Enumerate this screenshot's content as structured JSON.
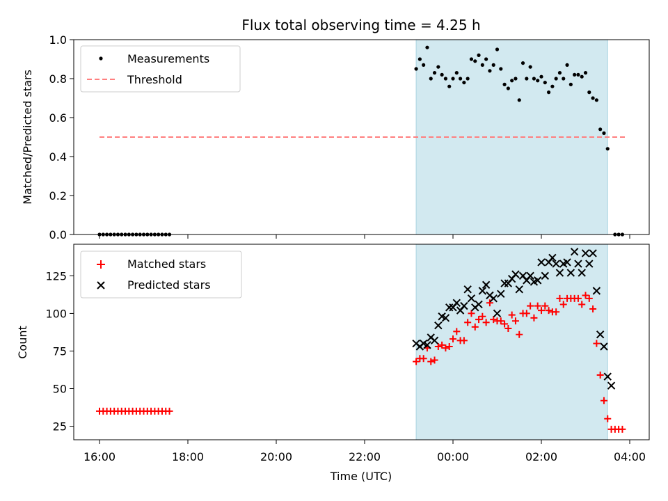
{
  "chart_data": [
    {
      "type": "scatter",
      "title": "Flux total observing time = 4.25 h",
      "ylabel": "Matched/Predicted stars",
      "xlabel": "",
      "ylim": [
        0,
        1.0
      ],
      "yticks": [
        "0.0",
        "0.2",
        "0.4",
        "0.6",
        "0.8",
        "1.0"
      ],
      "highlight_span": {
        "x_start": "23:10",
        "x_end": "03:30",
        "color": "#d2e9f0"
      },
      "legend": {
        "position": "upper-left",
        "entries": [
          "Measurements",
          "Threshold"
        ]
      },
      "series": [
        {
          "name": "Measurements",
          "marker": "dot",
          "color": "#000000",
          "points": [
            [
              "16:00",
              0
            ],
            [
              "16:05",
              0
            ],
            [
              "16:10",
              0
            ],
            [
              "16:15",
              0
            ],
            [
              "16:20",
              0
            ],
            [
              "16:25",
              0
            ],
            [
              "16:30",
              0
            ],
            [
              "16:35",
              0
            ],
            [
              "16:40",
              0
            ],
            [
              "16:45",
              0
            ],
            [
              "16:50",
              0
            ],
            [
              "16:55",
              0
            ],
            [
              "17:00",
              0
            ],
            [
              "17:05",
              0
            ],
            [
              "17:10",
              0
            ],
            [
              "17:15",
              0
            ],
            [
              "17:20",
              0
            ],
            [
              "17:25",
              0
            ],
            [
              "17:30",
              0
            ],
            [
              "17:35",
              0
            ],
            [
              "23:10",
              0.85
            ],
            [
              "23:15",
              0.9
            ],
            [
              "23:20",
              0.87
            ],
            [
              "23:25",
              0.96
            ],
            [
              "23:30",
              0.8
            ],
            [
              "23:35",
              0.83
            ],
            [
              "23:40",
              0.86
            ],
            [
              "23:45",
              0.82
            ],
            [
              "23:50",
              0.8
            ],
            [
              "23:55",
              0.76
            ],
            [
              "00:00",
              0.8
            ],
            [
              "00:05",
              0.83
            ],
            [
              "00:10",
              0.8
            ],
            [
              "00:15",
              0.78
            ],
            [
              "00:20",
              0.8
            ],
            [
              "00:25",
              0.9
            ],
            [
              "00:30",
              0.89
            ],
            [
              "00:35",
              0.92
            ],
            [
              "00:40",
              0.87
            ],
            [
              "00:45",
              0.9
            ],
            [
              "00:50",
              0.84
            ],
            [
              "00:55",
              0.87
            ],
            [
              "01:00",
              0.95
            ],
            [
              "01:05",
              0.85
            ],
            [
              "01:10",
              0.77
            ],
            [
              "01:15",
              0.75
            ],
            [
              "01:20",
              0.79
            ],
            [
              "01:25",
              0.8
            ],
            [
              "01:30",
              0.69
            ],
            [
              "01:35",
              0.88
            ],
            [
              "01:40",
              0.8
            ],
            [
              "01:45",
              0.86
            ],
            [
              "01:50",
              0.8
            ],
            [
              "01:55",
              0.79
            ],
            [
              "02:00",
              0.81
            ],
            [
              "02:05",
              0.78
            ],
            [
              "02:10",
              0.73
            ],
            [
              "02:15",
              0.76
            ],
            [
              "02:20",
              0.8
            ],
            [
              "02:25",
              0.83
            ],
            [
              "02:30",
              0.8
            ],
            [
              "02:35",
              0.87
            ],
            [
              "02:40",
              0.77
            ],
            [
              "02:45",
              0.82
            ],
            [
              "02:50",
              0.82
            ],
            [
              "02:55",
              0.81
            ],
            [
              "03:00",
              0.83
            ],
            [
              "03:05",
              0.73
            ],
            [
              "03:10",
              0.7
            ],
            [
              "03:15",
              0.69
            ],
            [
              "03:20",
              0.54
            ],
            [
              "03:25",
              0.52
            ],
            [
              "03:30",
              0.44
            ],
            [
              "03:40",
              0
            ],
            [
              "03:45",
              0
            ],
            [
              "03:50",
              0
            ]
          ]
        },
        {
          "name": "Threshold",
          "marker": "dashed-line",
          "color": "#ff7f7f",
          "points": [
            [
              "16:00",
              0.5
            ],
            [
              "03:55",
              0.5
            ]
          ]
        }
      ]
    },
    {
      "type": "scatter",
      "title": "",
      "ylabel": "Count",
      "xlabel": "Time (UTC)",
      "ylim": [
        16,
        146
      ],
      "yticks": [
        "25",
        "50",
        "75",
        "100",
        "125"
      ],
      "xticks": [
        "16:00",
        "18:00",
        "20:00",
        "22:00",
        "00:00",
        "02:00",
        "04:00"
      ],
      "highlight_span": {
        "x_start": "23:10",
        "x_end": "03:30",
        "color": "#d2e9f0"
      },
      "legend": {
        "position": "upper-left",
        "entries": [
          "Matched stars",
          "Predicted stars"
        ]
      },
      "series": [
        {
          "name": "Matched stars",
          "marker": "plus",
          "color": "#ff0000",
          "points": [
            [
              "16:00",
              35
            ],
            [
              "16:05",
              35
            ],
            [
              "16:10",
              35
            ],
            [
              "16:15",
              35
            ],
            [
              "16:20",
              35
            ],
            [
              "16:25",
              35
            ],
            [
              "16:30",
              35
            ],
            [
              "16:35",
              35
            ],
            [
              "16:40",
              35
            ],
            [
              "16:45",
              35
            ],
            [
              "16:50",
              35
            ],
            [
              "16:55",
              35
            ],
            [
              "17:00",
              35
            ],
            [
              "17:05",
              35
            ],
            [
              "17:10",
              35
            ],
            [
              "17:15",
              35
            ],
            [
              "17:20",
              35
            ],
            [
              "17:25",
              35
            ],
            [
              "17:30",
              35
            ],
            [
              "17:35",
              35
            ],
            [
              "23:10",
              68
            ],
            [
              "23:15",
              70
            ],
            [
              "23:20",
              70
            ],
            [
              "23:25",
              77
            ],
            [
              "23:30",
              68
            ],
            [
              "23:35",
              69
            ],
            [
              "23:40",
              78
            ],
            [
              "23:45",
              79
            ],
            [
              "23:50",
              77
            ],
            [
              "23:55",
              78
            ],
            [
              "00:00",
              83
            ],
            [
              "00:05",
              88
            ],
            [
              "00:10",
              82
            ],
            [
              "00:15",
              82
            ],
            [
              "00:20",
              94
            ],
            [
              "00:25",
              100
            ],
            [
              "00:30",
              91
            ],
            [
              "00:35",
              96
            ],
            [
              "00:40",
              98
            ],
            [
              "00:45",
              94
            ],
            [
              "00:50",
              107
            ],
            [
              "00:55",
              96
            ],
            [
              "01:00",
              95
            ],
            [
              "01:05",
              95
            ],
            [
              "01:10",
              93
            ],
            [
              "01:15",
              90
            ],
            [
              "01:20",
              99
            ],
            [
              "01:25",
              95
            ],
            [
              "01:30",
              86
            ],
            [
              "01:35",
              100
            ],
            [
              "01:40",
              100
            ],
            [
              "01:45",
              105
            ],
            [
              "01:50",
              97
            ],
            [
              "01:55",
              105
            ],
            [
              "02:00",
              102
            ],
            [
              "02:05",
              105
            ],
            [
              "02:10",
              102
            ],
            [
              "02:15",
              101
            ],
            [
              "02:20",
              101
            ],
            [
              "02:25",
              110
            ],
            [
              "02:30",
              106
            ],
            [
              "02:35",
              110
            ],
            [
              "02:40",
              110
            ],
            [
              "02:45",
              110
            ],
            [
              "02:50",
              110
            ],
            [
              "02:55",
              106
            ],
            [
              "03:00",
              112
            ],
            [
              "03:05",
              110
            ],
            [
              "03:10",
              103
            ],
            [
              "03:15",
              80
            ],
            [
              "03:20",
              59
            ],
            [
              "03:25",
              42
            ],
            [
              "03:30",
              30
            ],
            [
              "03:35",
              23
            ],
            [
              "03:40",
              23
            ],
            [
              "03:45",
              23
            ],
            [
              "03:50",
              23
            ]
          ]
        },
        {
          "name": "Predicted stars",
          "marker": "x",
          "color": "#000000",
          "points": [
            [
              "23:10",
              80
            ],
            [
              "23:15",
              78
            ],
            [
              "23:20",
              80
            ],
            [
              "23:25",
              79
            ],
            [
              "23:30",
              84
            ],
            [
              "23:35",
              82
            ],
            [
              "23:40",
              92
            ],
            [
              "23:45",
              98
            ],
            [
              "23:50",
              97
            ],
            [
              "23:55",
              104
            ],
            [
              "00:00",
              104
            ],
            [
              "00:05",
              107
            ],
            [
              "00:10",
              102
            ],
            [
              "00:15",
              105
            ],
            [
              "00:20",
              116
            ],
            [
              "00:25",
              110
            ],
            [
              "00:30",
              104
            ],
            [
              "00:35",
              106
            ],
            [
              "00:40",
              115
            ],
            [
              "00:45",
              119
            ],
            [
              "00:50",
              112
            ],
            [
              "00:55",
              110
            ],
            [
              "01:00",
              100
            ],
            [
              "01:05",
              113
            ],
            [
              "01:10",
              120
            ],
            [
              "01:15",
              120
            ],
            [
              "01:20",
              123
            ],
            [
              "01:25",
              126
            ],
            [
              "01:30",
              116
            ],
            [
              "01:35",
              125
            ],
            [
              "01:40",
              122
            ],
            [
              "01:45",
              125
            ],
            [
              "01:50",
              121
            ],
            [
              "01:55",
              122
            ],
            [
              "02:00",
              134
            ],
            [
              "02:05",
              125
            ],
            [
              "02:10",
              134
            ],
            [
              "02:15",
              137
            ],
            [
              "02:20",
              133
            ],
            [
              "02:25",
              127
            ],
            [
              "02:30",
              133
            ],
            [
              "02:35",
              134
            ],
            [
              "02:40",
              127
            ],
            [
              "02:45",
              141
            ],
            [
              "02:50",
              133
            ],
            [
              "02:55",
              127
            ],
            [
              "03:00",
              140
            ],
            [
              "03:05",
              133
            ],
            [
              "03:10",
              140
            ],
            [
              "03:15",
              115
            ],
            [
              "03:20",
              86
            ],
            [
              "03:25",
              78
            ],
            [
              "03:30",
              58
            ],
            [
              "03:35",
              52
            ]
          ]
        }
      ]
    }
  ]
}
